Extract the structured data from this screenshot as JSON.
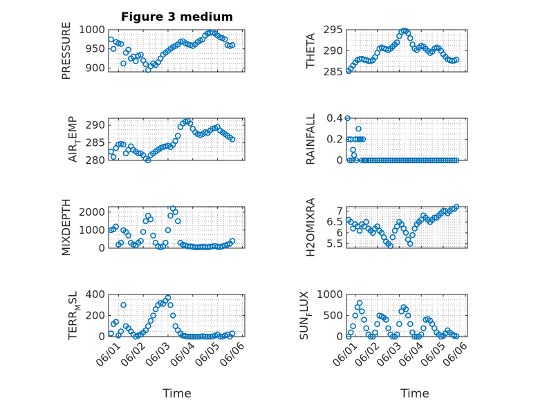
{
  "marker_color": "#0072bd",
  "chart_data": [
    {
      "type": "scatter",
      "title": "Figure 3 medium",
      "ylabel": "PRESSURE",
      "ylim": [
        890,
        1000
      ],
      "yticks": [
        900,
        950,
        1000
      ],
      "yticklabels": [
        "900",
        "950",
        "1000"
      ],
      "x": [
        0.1,
        0.2,
        0.3,
        0.4,
        0.5,
        0.6,
        0.7,
        0.8,
        0.9,
        1.0,
        1.1,
        1.2,
        1.3,
        1.4,
        1.5,
        1.6,
        1.7,
        1.8,
        1.9,
        2.0,
        2.1,
        2.2,
        2.3,
        2.4,
        2.5,
        2.6,
        2.7,
        2.8,
        2.9,
        3.0,
        3.1,
        3.2,
        3.3,
        3.4,
        3.5,
        3.6,
        3.7,
        3.8,
        3.9,
        4.0,
        4.1,
        4.2,
        4.3,
        4.4,
        4.5,
        4.6,
        4.7,
        4.8,
        4.9,
        5.0
      ],
      "y": [
        975,
        950,
        968,
        965,
        963,
        912,
        940,
        948,
        925,
        930,
        918,
        932,
        935,
        920,
        910,
        895,
        905,
        912,
        908,
        915,
        925,
        935,
        940,
        945,
        950,
        955,
        958,
        962,
        968,
        970,
        965,
        962,
        960,
        958,
        962,
        968,
        972,
        975,
        985,
        990,
        992,
        993,
        990,
        985,
        980,
        978,
        975,
        960,
        958,
        960
      ]
    },
    {
      "type": "scatter",
      "ylabel": "THETA",
      "ylim": [
        285,
        295
      ],
      "yticks": [
        285,
        290,
        295
      ],
      "yticklabels": [
        "285",
        "290",
        "295"
      ],
      "x": [
        0.1,
        0.2,
        0.3,
        0.4,
        0.5,
        0.6,
        0.7,
        0.8,
        0.9,
        1.0,
        1.1,
        1.2,
        1.3,
        1.4,
        1.5,
        1.6,
        1.7,
        1.8,
        1.9,
        2.0,
        2.1,
        2.2,
        2.3,
        2.4,
        2.5,
        2.6,
        2.7,
        2.8,
        2.9,
        3.0,
        3.1,
        3.2,
        3.3,
        3.4,
        3.5,
        3.6,
        3.7,
        3.8,
        3.9,
        4.0,
        4.1,
        4.2,
        4.3,
        4.4,
        4.5,
        4.6,
        4.7,
        4.8,
        4.9,
        5.0
      ],
      "y": [
        285.2,
        285.8,
        286.5,
        287.2,
        287.8,
        288.0,
        288.1,
        287.9,
        287.8,
        287.6,
        287.5,
        287.8,
        288.5,
        289.5,
        290.5,
        290.8,
        290.6,
        290.4,
        290.2,
        290.5,
        291.0,
        291.5,
        292.0,
        293.5,
        294.5,
        294.8,
        294.7,
        294.2,
        293.0,
        291.5,
        290.5,
        290.2,
        290.8,
        291.2,
        291.0,
        290.5,
        290.0,
        289.5,
        289.8,
        290.5,
        290.8,
        290.6,
        290.0,
        289.2,
        288.6,
        288.0,
        287.8,
        287.6,
        287.7,
        287.9
      ]
    },
    {
      "type": "scatter",
      "ylabel": "AIR_TEMP",
      "ylim": [
        280,
        292
      ],
      "yticks": [
        280,
        285,
        290
      ],
      "yticklabels": [
        "280",
        "285",
        "290"
      ],
      "x": [
        0.1,
        0.2,
        0.3,
        0.4,
        0.5,
        0.6,
        0.7,
        0.8,
        0.9,
        1.0,
        1.1,
        1.2,
        1.3,
        1.4,
        1.5,
        1.6,
        1.7,
        1.8,
        1.9,
        2.0,
        2.1,
        2.2,
        2.3,
        2.4,
        2.5,
        2.6,
        2.7,
        2.8,
        2.9,
        3.0,
        3.1,
        3.2,
        3.3,
        3.4,
        3.5,
        3.6,
        3.7,
        3.8,
        3.9,
        4.0,
        4.1,
        4.2,
        4.3,
        4.4,
        4.5,
        4.6,
        4.7,
        4.8,
        4.9,
        5.0
      ],
      "y": [
        282.5,
        281.0,
        283.5,
        284.5,
        284.7,
        284.5,
        282.0,
        283.0,
        284.0,
        283.0,
        282.5,
        282.0,
        282.0,
        281.5,
        280.5,
        280.0,
        281.5,
        282.0,
        282.5,
        283.0,
        283.5,
        283.8,
        284.0,
        284.2,
        283.8,
        284.5,
        285.5,
        287.0,
        289.5,
        290.5,
        291.0,
        291.2,
        290.5,
        289.0,
        288.0,
        287.5,
        287.2,
        287.5,
        288.0,
        287.8,
        288.5,
        289.0,
        289.2,
        289.5,
        288.5,
        288.0,
        287.5,
        287.0,
        286.5,
        286.0
      ]
    },
    {
      "type": "scatter",
      "ylabel": "RAINFALL",
      "ylim": [
        0,
        0.4
      ],
      "yticks": [
        0,
        0.2,
        0.4
      ],
      "yticklabels": [
        "0",
        "0.2",
        "0.4"
      ],
      "x": [
        0.05,
        0.1,
        0.15,
        0.2,
        0.25,
        0.3,
        0.35,
        0.4,
        0.45,
        0.5,
        0.55,
        0.6,
        0.65,
        0.7,
        0.75,
        0.8,
        0.85,
        0.9,
        1.0,
        1.1,
        1.2,
        1.3,
        1.4,
        1.5,
        1.6,
        1.7,
        1.8,
        1.9,
        2.0,
        2.1,
        2.2,
        2.3,
        2.4,
        2.5,
        2.6,
        2.7,
        2.8,
        2.9,
        3.0,
        3.1,
        3.2,
        3.3,
        3.4,
        3.5,
        3.6,
        3.7,
        3.8,
        3.9,
        4.0,
        4.1,
        4.2,
        4.3,
        4.4,
        4.5,
        4.6,
        4.7,
        4.8,
        4.9,
        5.0
      ],
      "y": [
        0.4,
        0.2,
        0,
        0.2,
        0,
        0.1,
        0.05,
        0.2,
        0,
        0.2,
        0.3,
        0.2,
        0.2,
        0,
        0.2,
        0,
        0,
        0,
        0,
        0,
        0,
        0,
        0,
        0,
        0,
        0,
        0,
        0,
        0,
        0,
        0,
        0,
        0,
        0,
        0,
        0,
        0,
        0,
        0,
        0,
        0,
        0,
        0,
        0,
        0,
        0,
        0,
        0,
        0,
        0,
        0,
        0,
        0,
        0,
        0,
        0,
        0,
        0,
        0
      ]
    },
    {
      "type": "scatter",
      "ylabel": "MIXDEPTH",
      "ylim": [
        0,
        2300
      ],
      "yticks": [
        0,
        1000,
        2000
      ],
      "yticklabels": [
        "0",
        "1000",
        "2000"
      ],
      "x": [
        0.1,
        0.2,
        0.3,
        0.4,
        0.5,
        0.6,
        0.7,
        0.8,
        0.9,
        1.0,
        1.1,
        1.2,
        1.3,
        1.4,
        1.5,
        1.6,
        1.7,
        1.8,
        1.9,
        2.0,
        2.1,
        2.2,
        2.3,
        2.4,
        2.5,
        2.6,
        2.7,
        2.8,
        2.9,
        3.0,
        3.1,
        3.2,
        3.3,
        3.4,
        3.5,
        3.6,
        3.7,
        3.8,
        3.9,
        4.0,
        4.1,
        4.2,
        4.3,
        4.4,
        4.5,
        4.6,
        4.7,
        4.8,
        4.9,
        5.0
      ],
      "y": [
        1000,
        1050,
        1200,
        200,
        300,
        1000,
        900,
        700,
        300,
        200,
        150,
        300,
        400,
        900,
        1500,
        1800,
        1600,
        700,
        300,
        100,
        50,
        100,
        300,
        1000,
        1800,
        2200,
        2000,
        1500,
        300,
        200,
        150,
        100,
        100,
        80,
        50,
        50,
        60,
        70,
        60,
        50,
        80,
        100,
        120,
        80,
        60,
        100,
        150,
        200,
        250,
        400
      ]
    },
    {
      "type": "scatter",
      "ylabel": "H2OMIXRA",
      "ylim": [
        5.3,
        7.2
      ],
      "yticks": [
        5.5,
        6,
        6.5,
        7
      ],
      "yticklabels": [
        "5.5",
        "6",
        "6.5",
        "7"
      ],
      "x": [
        0.1,
        0.2,
        0.3,
        0.4,
        0.5,
        0.6,
        0.7,
        0.8,
        0.9,
        1.0,
        1.1,
        1.2,
        1.3,
        1.4,
        1.5,
        1.6,
        1.7,
        1.8,
        1.9,
        2.0,
        2.1,
        2.2,
        2.3,
        2.4,
        2.5,
        2.6,
        2.7,
        2.8,
        2.9,
        3.0,
        3.1,
        3.2,
        3.3,
        3.4,
        3.5,
        3.6,
        3.7,
        3.8,
        3.9,
        4.0,
        4.1,
        4.2,
        4.3,
        4.4,
        4.5,
        4.6,
        4.7,
        4.8,
        4.9,
        5.0
      ],
      "y": [
        6.6,
        6.5,
        6.2,
        6.4,
        6.3,
        6.1,
        6.4,
        6.3,
        6.5,
        6.2,
        6.1,
        6.0,
        6.2,
        6.3,
        6.1,
        6.0,
        5.8,
        5.6,
        5.5,
        5.4,
        5.8,
        6.1,
        6.3,
        6.5,
        6.4,
        6.2,
        6.0,
        5.7,
        5.5,
        5.9,
        6.2,
        6.4,
        6.5,
        6.6,
        6.8,
        6.7,
        6.6,
        6.5,
        6.6,
        6.7,
        6.7,
        6.8,
        6.9,
        7.0,
        7.0,
        6.9,
        7.0,
        7.1,
        7.1,
        7.2
      ]
    },
    {
      "type": "scatter",
      "ylabel": "TERR_MSL",
      "ylim": [
        0,
        400
      ],
      "yticks": [
        0,
        200,
        400
      ],
      "yticklabels": [
        "0",
        "200",
        "400"
      ],
      "x": [
        0.1,
        0.2,
        0.3,
        0.4,
        0.5,
        0.6,
        0.7,
        0.8,
        0.9,
        1.0,
        1.1,
        1.2,
        1.3,
        1.4,
        1.5,
        1.6,
        1.7,
        1.8,
        1.9,
        2.0,
        2.1,
        2.2,
        2.3,
        2.4,
        2.5,
        2.6,
        2.7,
        2.8,
        2.9,
        3.0,
        3.1,
        3.2,
        3.3,
        3.4,
        3.5,
        3.6,
        3.7,
        3.8,
        3.9,
        4.0,
        4.1,
        4.2,
        4.3,
        4.4,
        4.5,
        4.6,
        4.7,
        4.8,
        4.9,
        5.0
      ],
      "y": [
        30,
        120,
        140,
        10,
        50,
        300,
        100,
        80,
        50,
        20,
        0,
        10,
        20,
        40,
        60,
        100,
        150,
        200,
        260,
        300,
        320,
        310,
        340,
        370,
        300,
        200,
        100,
        60,
        30,
        10,
        5,
        0,
        0,
        0,
        0,
        0,
        0,
        5,
        0,
        0,
        0,
        0,
        10,
        20,
        0,
        0,
        10,
        20,
        0,
        30
      ]
    },
    {
      "type": "scatter",
      "ylabel": "SUN_FLUX",
      "ylim": [
        0,
        1000
      ],
      "yticks": [
        0,
        500,
        1000
      ],
      "yticklabels": [
        "0",
        "500",
        "1000"
      ],
      "x": [
        0.1,
        0.2,
        0.3,
        0.4,
        0.5,
        0.6,
        0.7,
        0.8,
        0.9,
        1.0,
        1.1,
        1.2,
        1.3,
        1.4,
        1.5,
        1.6,
        1.7,
        1.8,
        1.9,
        2.0,
        2.1,
        2.2,
        2.3,
        2.4,
        2.5,
        2.6,
        2.7,
        2.8,
        2.9,
        3.0,
        3.1,
        3.2,
        3.3,
        3.4,
        3.5,
        3.6,
        3.7,
        3.8,
        3.9,
        4.0,
        4.1,
        4.2,
        4.3,
        4.4,
        4.5,
        4.6,
        4.7,
        4.8,
        4.9,
        5.0
      ],
      "y": [
        0,
        100,
        250,
        500,
        700,
        800,
        600,
        400,
        200,
        50,
        0,
        0,
        100,
        300,
        500,
        480,
        450,
        400,
        200,
        50,
        0,
        0,
        50,
        300,
        600,
        700,
        650,
        500,
        300,
        100,
        0,
        0,
        0,
        50,
        200,
        400,
        420,
        380,
        300,
        200,
        100,
        50,
        0,
        20,
        80,
        150,
        100,
        50,
        20,
        10
      ]
    }
  ],
  "shared_x": {
    "xlim": [
      0,
      5.5
    ],
    "xticks": [
      0.4,
      1.4,
      2.4,
      3.4,
      4.4,
      5.4
    ],
    "xticklabels": [
      "06/01",
      "06/02",
      "06/03",
      "06/04",
      "06/05",
      "06/06"
    ],
    "xlabel": "Time"
  }
}
